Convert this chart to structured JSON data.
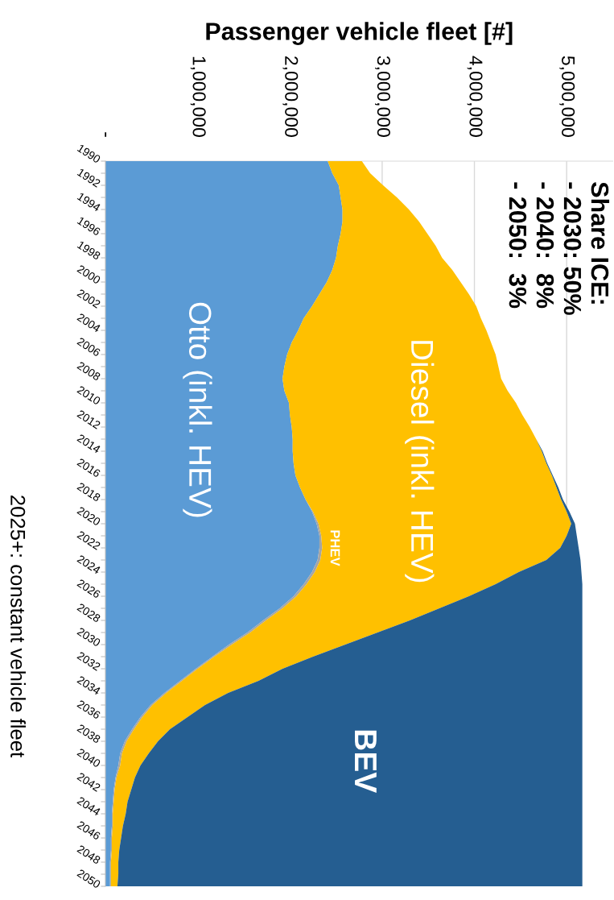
{
  "chart_data": {
    "type": "area",
    "stacked": true,
    "orientation": "horizontal",
    "xlabel": "Passenger vehicle fleet [#]",
    "categories": [
      "1990",
      null,
      "1992",
      null,
      "1994",
      null,
      "1996",
      null,
      "1998",
      null,
      "2000",
      null,
      "2002",
      null,
      "2004",
      null,
      "2006",
      null,
      "2008",
      null,
      "2010",
      null,
      "2012",
      null,
      "2014",
      null,
      "2016",
      null,
      "2018",
      null,
      "2020",
      null,
      "2022",
      null,
      "2024",
      null,
      "2026",
      null,
      "2028",
      null,
      "2030",
      null,
      "2032",
      null,
      "2034",
      null,
      "2036",
      null,
      "2038",
      null,
      "2040",
      null,
      "2042",
      null,
      "2044",
      null,
      "2046",
      null,
      "2048",
      null,
      "2050"
    ],
    "xlim": [
      0,
      5500000
    ],
    "xticks": [
      {
        "value": 0,
        "label": "-"
      },
      {
        "value": 1000000,
        "label": "1,000,000"
      },
      {
        "value": 2000000,
        "label": "2,000,000"
      },
      {
        "value": 3000000,
        "label": "3,000,000"
      },
      {
        "value": 4000000,
        "label": "4,000,000"
      },
      {
        "value": 5000000,
        "label": "5,000,000"
      }
    ],
    "grid": "x",
    "series": [
      {
        "name": "Otto (inkl. HEV)",
        "color": "#5b9bd5",
        "values": [
          2410000,
          2460000,
          2530000,
          2550000,
          2570000,
          2570000,
          2550000,
          2520000,
          2500000,
          2460000,
          2400000,
          2320000,
          2240000,
          2150000,
          2090000,
          2020000,
          1970000,
          1940000,
          1920000,
          1940000,
          1990000,
          2000000,
          2020000,
          2030000,
          2030000,
          2040000,
          2060000,
          2110000,
          2170000,
          2240000,
          2290000,
          2320000,
          2320000,
          2300000,
          2240000,
          2150000,
          2040000,
          1890000,
          1710000,
          1540000,
          1340000,
          1160000,
          980000,
          810000,
          640000,
          490000,
          380000,
          290000,
          210000,
          160000,
          140000,
          110000,
          90000,
          80000,
          70000,
          70000,
          60000,
          60000,
          50000,
          50000,
          50000
        ]
      },
      {
        "name": "PHEV",
        "color": "#a5a5a5",
        "values": [
          0,
          0,
          0,
          0,
          0,
          0,
          0,
          0,
          0,
          0,
          0,
          0,
          0,
          0,
          0,
          0,
          0,
          0,
          0,
          0,
          0,
          0,
          0,
          0,
          0,
          0,
          0,
          0,
          0,
          10000,
          20000,
          20000,
          30000,
          30000,
          30000,
          30000,
          30000,
          30000,
          30000,
          30000,
          30000,
          20000,
          20000,
          20000,
          20000,
          20000,
          20000,
          20000,
          20000,
          20000,
          20000,
          10000,
          10000,
          10000,
          10000,
          10000,
          10000,
          10000,
          10000,
          10000,
          10000
        ]
      },
      {
        "name": "Diesel (inkl. HEV)",
        "color": "#ffc000",
        "values": [
          370000,
          410000,
          480000,
          610000,
          720000,
          830000,
          940000,
          1060000,
          1150000,
          1300000,
          1450000,
          1620000,
          1780000,
          1920000,
          2040000,
          2160000,
          2260000,
          2320000,
          2370000,
          2420000,
          2460000,
          2520000,
          2580000,
          2640000,
          2700000,
          2740000,
          2780000,
          2780000,
          2770000,
          2750000,
          2740000,
          2660000,
          2580000,
          2450000,
          2210000,
          2050000,
          1870000,
          1700000,
          1560000,
          1380000,
          1230000,
          1070000,
          920000,
          830000,
          670000,
          570000,
          490000,
          390000,
          340000,
          290000,
          220000,
          200000,
          180000,
          150000,
          140000,
          110000,
          100000,
          80000,
          80000,
          80000,
          70000
        ]
      },
      {
        "name": "BEV",
        "color": "#255e91",
        "values": [
          0,
          0,
          0,
          0,
          0,
          0,
          0,
          0,
          0,
          0,
          0,
          0,
          0,
          0,
          0,
          0,
          0,
          0,
          0,
          0,
          0,
          0,
          0,
          0,
          10000,
          10000,
          10000,
          20000,
          20000,
          30000,
          40000,
          110000,
          200000,
          370000,
          680000,
          940000,
          1230000,
          1550000,
          1870000,
          2220000,
          2570000,
          2920000,
          3250000,
          3510000,
          3840000,
          4090000,
          4280000,
          4470000,
          4600000,
          4700000,
          4790000,
          4850000,
          4890000,
          4930000,
          4950000,
          4980000,
          5000000,
          5020000,
          5030000,
          5030000,
          5040000
        ]
      }
    ],
    "annotations": [
      "Share ICE:\n- 2030: 50%\n- 2040:  8%\n- 2050:  3%",
      "2025+: constant vehicle fleet"
    ]
  }
}
